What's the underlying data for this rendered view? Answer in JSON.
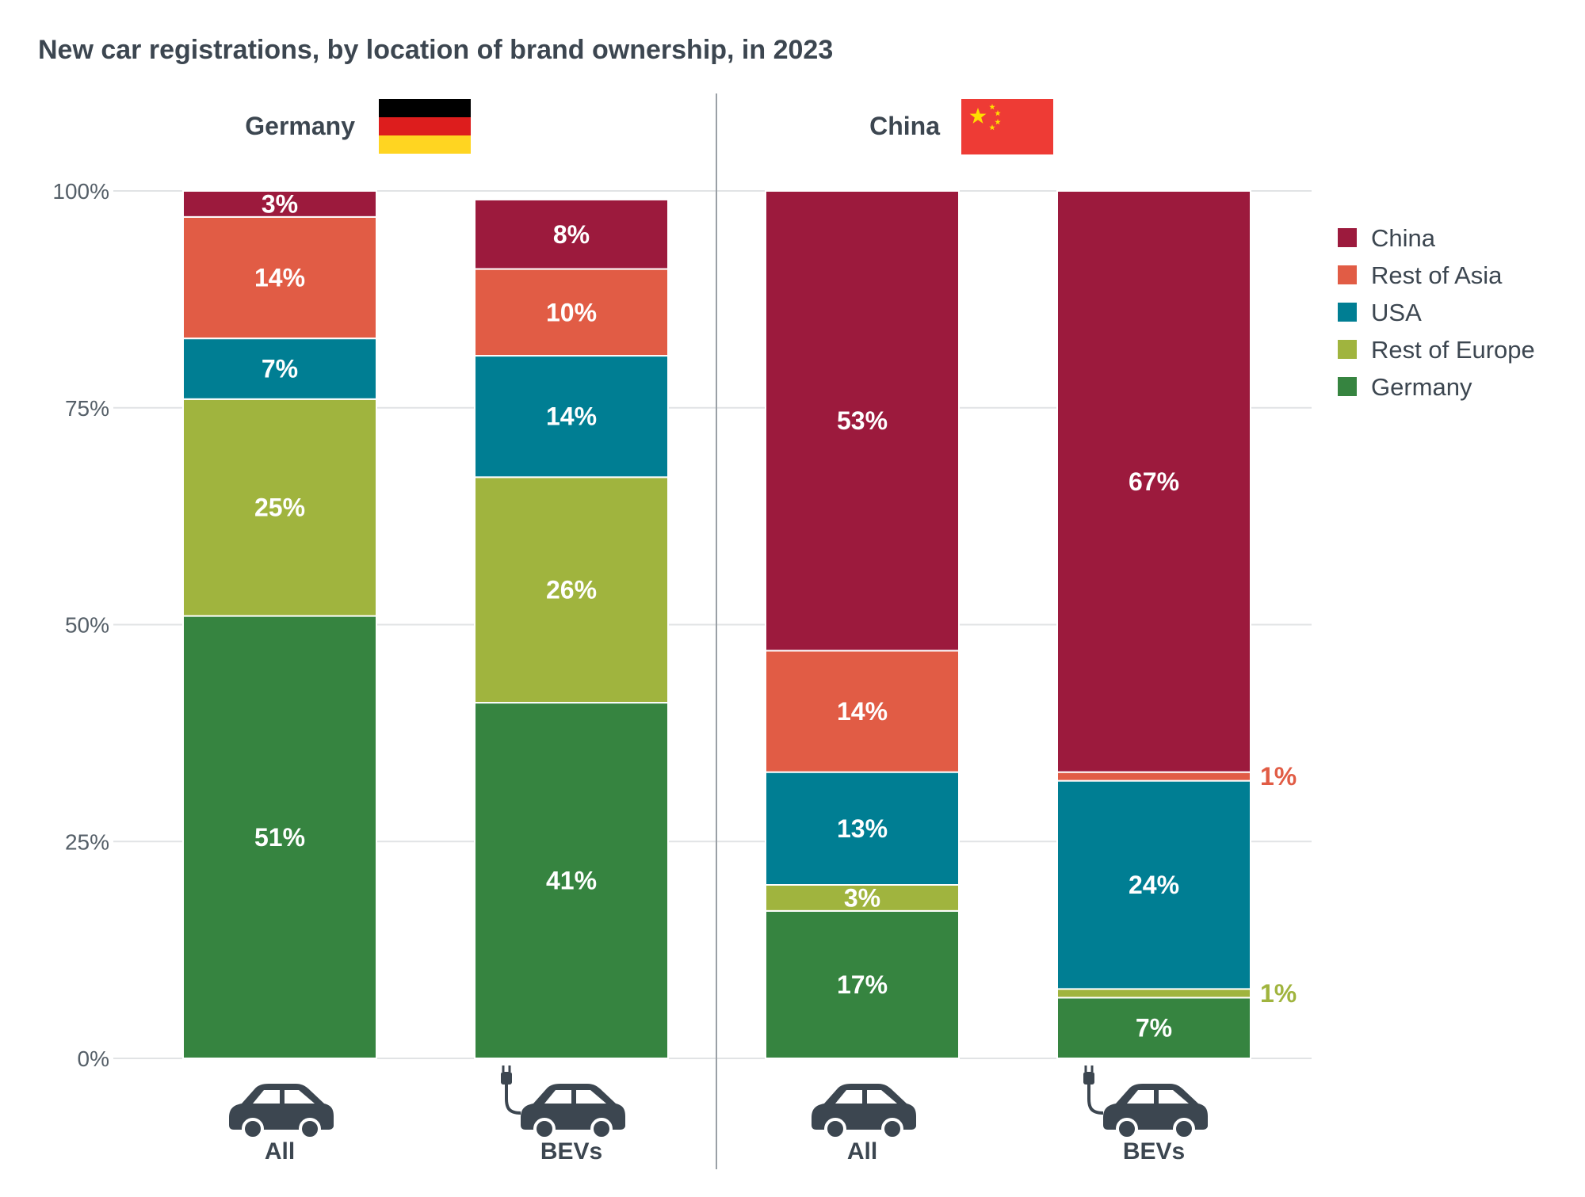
{
  "chart_data": {
    "type": "bar",
    "stacked": true,
    "title": "New car registrations, by location of brand ownership, in 2023",
    "y_ticks": [
      "0%",
      "25%",
      "50%",
      "75%",
      "100%"
    ],
    "ylim": [
      0,
      100
    ],
    "legend_position": "right",
    "panels": [
      {
        "name": "Germany",
        "flag": "germany-flag",
        "categories": [
          "All",
          "BEVs"
        ]
      },
      {
        "name": "China",
        "flag": "china-flag",
        "categories": [
          "All",
          "BEVs"
        ]
      }
    ],
    "categories": [
      "All",
      "BEVs",
      "All",
      "BEVs"
    ],
    "category_icons": [
      "car-icon",
      "electric-car-icon",
      "car-icon",
      "electric-car-icon"
    ],
    "series": [
      {
        "name": "Germany",
        "color": "#368440",
        "values": [
          51,
          41,
          17,
          7
        ],
        "labels": [
          "51%",
          "41%",
          "17%",
          "7%"
        ]
      },
      {
        "name": "Rest of Europe",
        "color": "#a0b43e",
        "values": [
          25,
          26,
          3,
          1
        ],
        "labels": [
          "25%",
          "26%",
          "3%",
          "1%"
        ]
      },
      {
        "name": "USA",
        "color": "#007e93",
        "values": [
          7,
          14,
          13,
          24
        ],
        "labels": [
          "7%",
          "14%",
          "13%",
          "24%"
        ]
      },
      {
        "name": "Rest of Asia",
        "color": "#e15c45",
        "values": [
          14,
          10,
          14,
          1
        ],
        "labels": [
          "14%",
          "10%",
          "14%",
          "1%"
        ]
      },
      {
        "name": "China",
        "color": "#9c1a3d",
        "values": [
          3,
          8,
          53,
          67
        ],
        "labels": [
          "3%",
          "8%",
          "53%",
          "67%"
        ]
      }
    ],
    "legend_order": [
      "China",
      "Rest of Asia",
      "USA",
      "Rest of Europe",
      "Germany"
    ],
    "flag_colors": {
      "germany": [
        "#000000",
        "#dd1d1d",
        "#ffd521"
      ],
      "china_red": "#ee3b35",
      "china_star": "#ffde00"
    }
  }
}
